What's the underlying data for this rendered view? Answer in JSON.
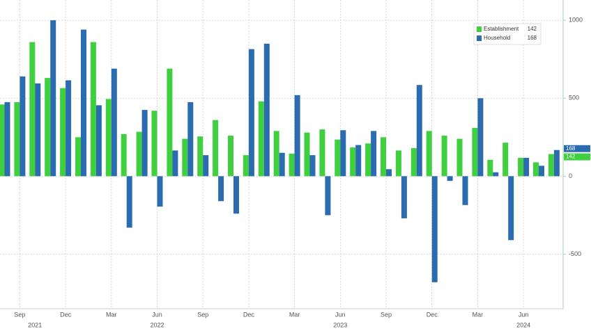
{
  "chart_data": {
    "type": "bar",
    "categories": [
      null,
      "Sep",
      null,
      null,
      "Dec",
      null,
      null,
      "Mar",
      null,
      null,
      "Jun",
      null,
      null,
      "Sep",
      null,
      null,
      "Dec",
      null,
      null,
      "Mar",
      null,
      null,
      "Jun",
      null,
      null,
      "Sep",
      null,
      null,
      "Dec",
      null,
      null,
      "Mar",
      null,
      null,
      "Jun",
      null,
      null
    ],
    "year_labels": [
      null,
      null,
      "2021",
      null,
      null,
      null,
      null,
      null,
      null,
      null,
      "2022",
      null,
      null,
      null,
      null,
      null,
      null,
      null,
      null,
      null,
      null,
      null,
      "2023",
      null,
      null,
      null,
      null,
      null,
      null,
      null,
      null,
      null,
      null,
      null,
      "2024",
      null,
      null
    ],
    "series": [
      {
        "name": "Establishment",
        "color": "#3fcf3f",
        "values": [
          460,
          475,
          860,
          630,
          565,
          250,
          860,
          495,
          270,
          285,
          420,
          690,
          240,
          255,
          360,
          260,
          135,
          480,
          290,
          145,
          280,
          300,
          235,
          185,
          210,
          250,
          165,
          180,
          290,
          260,
          240,
          310,
          105,
          215,
          118,
          89,
          142
        ]
      },
      {
        "name": "Household",
        "color": "#2b6cb0",
        "values": [
          475,
          640,
          595,
          1000,
          615,
          940,
          455,
          690,
          -330,
          425,
          -195,
          165,
          475,
          135,
          -160,
          -240,
          815,
          850,
          150,
          520,
          135,
          -250,
          295,
          200,
          290,
          45,
          -270,
          585,
          -680,
          -30,
          -185,
          500,
          25,
          -410,
          118,
          67,
          168
        ]
      }
    ],
    "ylim": [
      -850,
      1130
    ],
    "yticks": [
      -500,
      0,
      500,
      1000
    ],
    "grid": true,
    "legend": "top-right"
  }
}
